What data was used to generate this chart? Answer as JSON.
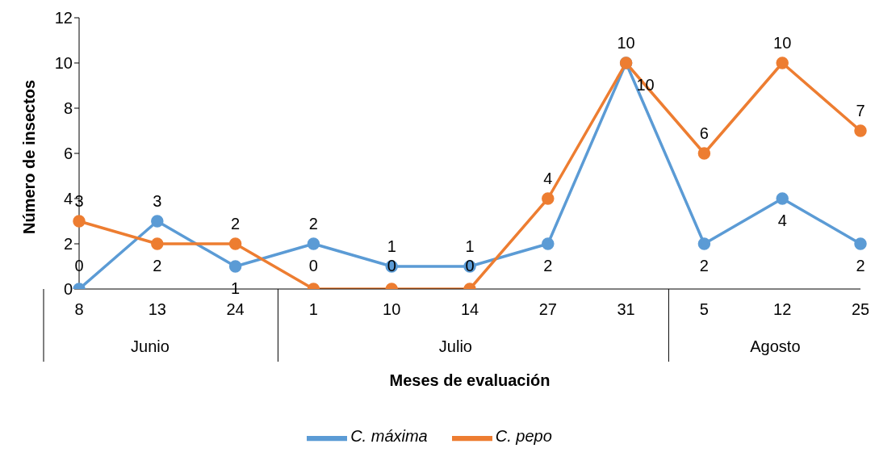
{
  "chart_data": {
    "type": "line",
    "xlabel": "Meses de evaluación",
    "ylabel": "Número de insectos",
    "categories": [
      "8",
      "13",
      "24",
      "1",
      "10",
      "14",
      "27",
      "31",
      "5",
      "12",
      "25"
    ],
    "annotations": [
      "Junio",
      "Julio",
      "Agosto"
    ],
    "series": [
      {
        "name": "C. máxima",
        "color": "#5b9bd5",
        "values": [
          0,
          3,
          1,
          2,
          1,
          1,
          2,
          10,
          2,
          4,
          2
        ]
      },
      {
        "name": "C. pepo",
        "color": "#ed7d31",
        "values": [
          3,
          2,
          2,
          0,
          0,
          0,
          4,
          10,
          6,
          10,
          7
        ]
      }
    ],
    "ylim": [
      0,
      12
    ],
    "yticks": [
      0,
      2,
      4,
      6,
      8,
      10,
      12
    ],
    "grid": false,
    "legend": "bottom",
    "marker": "circle",
    "line_style": "solid",
    "data_labels": true
  }
}
